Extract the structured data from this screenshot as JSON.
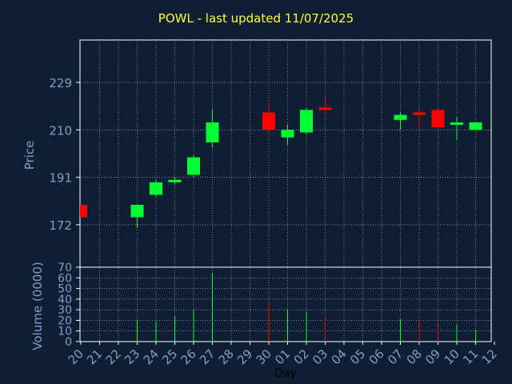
{
  "chart_data": {
    "type": "candlestick",
    "title": "POWL - last updated 11/07/2025",
    "xlabel": "Day",
    "colors": {
      "background": "#0f1f33",
      "axis": "#ffffff",
      "grid": "#ffffff",
      "text": "#7f9fc8",
      "title": "#ffff33",
      "up": "#00ff33",
      "down": "#ff0000"
    },
    "x_ticks": [
      "20",
      "21",
      "22",
      "23",
      "24",
      "25",
      "26",
      "27",
      "28",
      "29",
      "30",
      "01",
      "02",
      "03",
      "04",
      "05",
      "06",
      "07",
      "08",
      "09",
      "10",
      "11",
      "12"
    ],
    "price_panel": {
      "ylabel": "Price",
      "ylim": [
        155,
        246
      ],
      "y_ticks": [
        172,
        191,
        210,
        229
      ],
      "candles": [
        {
          "day": "20",
          "open": 180,
          "high": 180,
          "low": 175,
          "close": 175
        },
        {
          "day": "23",
          "open": 175,
          "high": 180,
          "low": 171,
          "close": 180
        },
        {
          "day": "24",
          "open": 184,
          "high": 190,
          "low": 183,
          "close": 189
        },
        {
          "day": "25",
          "open": 189,
          "high": 191,
          "low": 188,
          "close": 190
        },
        {
          "day": "26",
          "open": 192,
          "high": 200,
          "low": 191,
          "close": 199
        },
        {
          "day": "27",
          "open": 205,
          "high": 218,
          "low": 203,
          "close": 213
        },
        {
          "day": "30",
          "open": 217,
          "high": 221,
          "low": 209,
          "close": 210
        },
        {
          "day": "01",
          "open": 207,
          "high": 212,
          "low": 204,
          "close": 210
        },
        {
          "day": "02",
          "open": 209,
          "high": 219,
          "low": 208,
          "close": 218
        },
        {
          "day": "03",
          "open": 219,
          "high": 224,
          "low": 217,
          "close": 218
        },
        {
          "day": "07",
          "open": 214,
          "high": 217,
          "low": 210,
          "close": 216
        },
        {
          "day": "08",
          "open": 217,
          "high": 219,
          "low": 211,
          "close": 216
        },
        {
          "day": "09",
          "open": 218,
          "high": 219,
          "low": 211,
          "close": 211
        },
        {
          "day": "10",
          "open": 212,
          "high": 215,
          "low": 206,
          "close": 213
        },
        {
          "day": "11",
          "open": 210,
          "high": 213,
          "low": 210,
          "close": 213
        }
      ]
    },
    "volume_panel": {
      "ylabel": "Volume (0000)",
      "ylim": [
        0,
        70
      ],
      "y_ticks": [
        0,
        10,
        20,
        30,
        40,
        50,
        60,
        70
      ],
      "bars": [
        {
          "day": "23",
          "value": 20,
          "direction": "up"
        },
        {
          "day": "24",
          "value": 19,
          "direction": "up"
        },
        {
          "day": "25",
          "value": 24,
          "direction": "up"
        },
        {
          "day": "26",
          "value": 30,
          "direction": "up"
        },
        {
          "day": "27",
          "value": 64,
          "direction": "up"
        },
        {
          "day": "30",
          "value": 37,
          "direction": "down"
        },
        {
          "day": "01",
          "value": 30,
          "direction": "up"
        },
        {
          "day": "02",
          "value": 28,
          "direction": "up"
        },
        {
          "day": "03",
          "value": 24,
          "direction": "down"
        },
        {
          "day": "07",
          "value": 21,
          "direction": "up"
        },
        {
          "day": "08",
          "value": 19,
          "direction": "down"
        },
        {
          "day": "09",
          "value": 17,
          "direction": "down"
        },
        {
          "day": "10",
          "value": 16,
          "direction": "up"
        },
        {
          "day": "11",
          "value": 11,
          "direction": "up"
        }
      ]
    }
  }
}
